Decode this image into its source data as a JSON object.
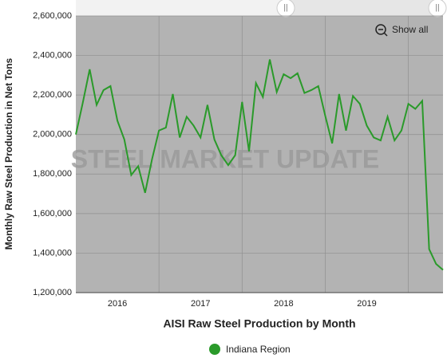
{
  "chart_data": {
    "type": "line",
    "y_label": "Monthly Raw Steel Production in Net Tons",
    "x_label": "AISI Raw Steel Production by Month",
    "watermark": "STEEL MARKET UPDATE",
    "reset_button": "Show all",
    "categories": [
      null,
      null,
      null,
      null,
      null,
      null,
      "2016",
      null,
      null,
      null,
      null,
      null,
      null,
      null,
      null,
      null,
      null,
      null,
      "2017",
      null,
      null,
      null,
      null,
      null,
      null,
      null,
      null,
      null,
      null,
      null,
      "2018",
      null,
      null,
      null,
      null,
      null,
      null,
      null,
      null,
      null,
      null,
      null,
      "2019",
      null,
      null,
      null,
      null,
      null,
      null,
      null,
      null,
      null,
      null,
      null
    ],
    "series": [
      {
        "name": "Indiana Region",
        "color": "#2a9a2a",
        "values": [
          2000000,
          2160000,
          2330000,
          2150000,
          2225000,
          2245000,
          2070000,
          1975000,
          1795000,
          1840000,
          1705000,
          1875000,
          2020000,
          2035000,
          2205000,
          1985000,
          2090000,
          2045000,
          1985000,
          2150000,
          1975000,
          1895000,
          1845000,
          1895000,
          2165000,
          1915000,
          2260000,
          2190000,
          2380000,
          2215000,
          2305000,
          2285000,
          2310000,
          2210000,
          2225000,
          2245000,
          2095000,
          1955000,
          2205000,
          2020000,
          2195000,
          2155000,
          2045000,
          1985000,
          1970000,
          2090000,
          1970000,
          2020000,
          2155000,
          2130000,
          2170000,
          1420000,
          1345000,
          1315000
        ]
      }
    ],
    "ylim": [
      1200000,
      2600000
    ],
    "yticks": [
      {
        "value": 1200000,
        "label": "1,200,000"
      },
      {
        "value": 1400000,
        "label": "1,400,000"
      },
      {
        "value": 1600000,
        "label": "1,600,000"
      },
      {
        "value": 1800000,
        "label": "1,800,000"
      },
      {
        "value": 2000000,
        "label": "2,000,000"
      },
      {
        "value": 2200000,
        "label": "2,200,000"
      },
      {
        "value": 2400000,
        "label": "2,400,000"
      },
      {
        "value": 2600000,
        "label": "2,600,000"
      }
    ],
    "grid": true
  }
}
